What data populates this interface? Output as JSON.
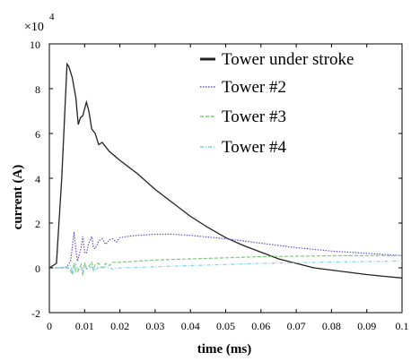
{
  "chart_data": {
    "type": "line",
    "title": "",
    "xlabel": "time (ms)",
    "ylabel": "current (A)",
    "xlim": [
      0,
      0.1
    ],
    "ylim": [
      -20000,
      100000
    ],
    "y_multiplier": {
      "base": "×10",
      "exponent": "4"
    },
    "x_ticks": [
      {
        "value": 0,
        "label": "0"
      },
      {
        "value": 0.01,
        "label": "0.01"
      },
      {
        "value": 0.02,
        "label": "0.02"
      },
      {
        "value": 0.03,
        "label": "0.03"
      },
      {
        "value": 0.04,
        "label": "0.04"
      },
      {
        "value": 0.05,
        "label": "0.05"
      },
      {
        "value": 0.06,
        "label": "0.06"
      },
      {
        "value": 0.07,
        "label": "0.07"
      },
      {
        "value": 0.08,
        "label": "0.08"
      },
      {
        "value": 0.09,
        "label": "0.09"
      },
      {
        "value": 0.1,
        "label": "0.1"
      }
    ],
    "y_ticks": [
      {
        "value": -20000,
        "label": "-2"
      },
      {
        "value": 0,
        "label": "0"
      },
      {
        "value": 20000,
        "label": "2"
      },
      {
        "value": 40000,
        "label": "4"
      },
      {
        "value": 60000,
        "label": "6"
      },
      {
        "value": 80000,
        "label": "8"
      },
      {
        "value": 100000,
        "label": "10"
      }
    ],
    "grid": false,
    "legend_position": "top-right",
    "series": [
      {
        "name": "Tower under stroke",
        "color": "#222222",
        "dash": "solid",
        "x": [
          0,
          0.002,
          0.0035,
          0.005,
          0.0055,
          0.0065,
          0.0075,
          0.0082,
          0.0088,
          0.0095,
          0.0105,
          0.0112,
          0.012,
          0.013,
          0.014,
          0.015,
          0.017,
          0.02,
          0.025,
          0.03,
          0.035,
          0.04,
          0.045,
          0.05,
          0.055,
          0.06,
          0.065,
          0.07,
          0.075,
          0.08,
          0.085,
          0.09,
          0.095,
          0.1
        ],
        "y": [
          0,
          2000,
          40000,
          91000,
          90000,
          85000,
          76000,
          64000,
          67000,
          68000,
          74000,
          70000,
          62000,
          60000,
          55000,
          56000,
          52000,
          48000,
          42000,
          35000,
          29000,
          23000,
          18000,
          13500,
          10000,
          7000,
          4000,
          2000,
          0,
          -1000,
          -2000,
          -3000,
          -3800,
          -4500
        ]
      },
      {
        "name": "Tower #2",
        "color": "#6a4fc8",
        "dash": "dotted",
        "x": [
          0,
          0.003,
          0.005,
          0.006,
          0.0065,
          0.007,
          0.0075,
          0.008,
          0.009,
          0.0095,
          0.01,
          0.0105,
          0.011,
          0.012,
          0.0125,
          0.013,
          0.014,
          0.015,
          0.016,
          0.017,
          0.018,
          0.019,
          0.02,
          0.022,
          0.025,
          0.03,
          0.035,
          0.04,
          0.05,
          0.06,
          0.07,
          0.08,
          0.09,
          0.1
        ],
        "y": [
          0,
          0,
          500,
          3000,
          9000,
          16000,
          8000,
          3000,
          9000,
          14000,
          7000,
          6500,
          10000,
          14000,
          9000,
          8500,
          12000,
          13000,
          10500,
          12500,
          13000,
          11500,
          13500,
          14000,
          14500,
          15000,
          15000,
          14500,
          13000,
          11000,
          9000,
          7500,
          6500,
          5500
        ]
      },
      {
        "name": "Tower #3",
        "color": "#7dc87d",
        "dash": "dashed",
        "x": [
          0,
          0.005,
          0.006,
          0.0065,
          0.007,
          0.0075,
          0.008,
          0.009,
          0.0095,
          0.01,
          0.0105,
          0.011,
          0.012,
          0.0125,
          0.013,
          0.014,
          0.015,
          0.016,
          0.017,
          0.018,
          0.02,
          0.025,
          0.03,
          0.04,
          0.05,
          0.06,
          0.07,
          0.08,
          0.09,
          0.1
        ],
        "y": [
          0,
          0,
          -1000,
          -3000,
          2000,
          -1500,
          -2000,
          1500,
          -3500,
          2500,
          -500,
          0,
          2500,
          -1000,
          1500,
          2000,
          0,
          2000,
          1000,
          2500,
          2500,
          3000,
          3500,
          4000,
          4500,
          5000,
          5200,
          5400,
          5500,
          5500
        ]
      },
      {
        "name": "Tower #4",
        "color": "#7fcff0",
        "dash": "dashdot",
        "x": [
          0,
          0.005,
          0.006,
          0.0065,
          0.007,
          0.0075,
          0.008,
          0.009,
          0.0095,
          0.01,
          0.011,
          0.012,
          0.013,
          0.014,
          0.015,
          0.016,
          0.018,
          0.02,
          0.025,
          0.03,
          0.04,
          0.05,
          0.06,
          0.07,
          0.08,
          0.09,
          0.1
        ],
        "y": [
          0,
          0,
          1000,
          -1500,
          -2000,
          1500,
          -500,
          0,
          -1500,
          1500,
          -500,
          500,
          -1000,
          500,
          0,
          500,
          -500,
          0,
          200,
          500,
          1000,
          1500,
          2000,
          2300,
          2600,
          2800,
          3000
        ]
      }
    ]
  }
}
